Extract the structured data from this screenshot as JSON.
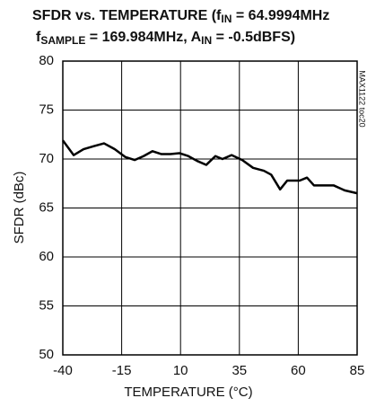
{
  "chart_data": {
    "type": "line",
    "title": [
      [
        "SFDR vs. TEMPERATURE (f",
        "IN",
        " = 64.9994MHz"
      ],
      [
        "f",
        "SAMPLE",
        " = 169.984MHz, A",
        "IN",
        " = -0.5dBFS)"
      ]
    ],
    "watermark": "MAX1122 toc20",
    "xlabel": "TEMPERATURE (°C)",
    "ylabel": "SFDR (dBc)",
    "xlim": [
      -40,
      85
    ],
    "xticks": [
      -40,
      -15,
      10,
      35,
      60,
      85
    ],
    "ylim": [
      50,
      80
    ],
    "yticks": [
      50,
      55,
      60,
      65,
      70,
      75,
      80
    ],
    "grid": true,
    "series": [
      {
        "color": "#000000",
        "x": [
          -40,
          -35.4,
          -31.2,
          -27,
          -22.5,
          -17.9,
          -13.4,
          -9.5,
          -5.7,
          -1.9,
          1.9,
          5.7,
          9.5,
          13.3,
          17.1,
          20.9,
          24.8,
          27.8,
          31.7,
          36.2,
          40.8,
          45.4,
          48.5,
          52.3,
          55.3,
          60.6,
          63.7,
          66.7,
          71.3,
          75.1,
          79.7,
          85
        ],
        "values": [
          71.9,
          70.4,
          71.0,
          71.3,
          71.6,
          71.0,
          70.2,
          69.9,
          70.3,
          70.8,
          70.5,
          70.5,
          70.6,
          70.3,
          69.8,
          69.4,
          70.3,
          70.0,
          70.4,
          69.9,
          69.1,
          68.8,
          68.4,
          66.9,
          67.8,
          67.8,
          68.1,
          67.3,
          67.3,
          67.3,
          66.8,
          66.5
        ]
      }
    ]
  }
}
